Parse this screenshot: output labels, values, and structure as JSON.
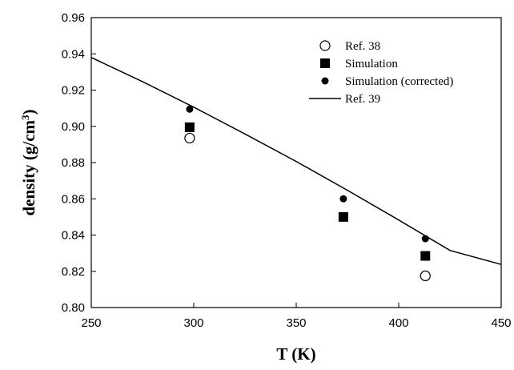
{
  "chart_data": {
    "type": "scatter",
    "xlabel": "T (K)",
    "ylabel_main": "density (g/cm",
    "ylabel_sup": "3",
    "ylabel_close": ")",
    "xlim": [
      250,
      450
    ],
    "ylim": [
      0.8,
      0.96
    ],
    "xticks": [
      "250",
      "300",
      "350",
      "400",
      "450"
    ],
    "yticks": [
      "0.80",
      "0.82",
      "0.84",
      "0.86",
      "0.88",
      "0.90",
      "0.92",
      "0.94",
      "0.96"
    ],
    "grid": false,
    "legend_position": "top-right",
    "series": [
      {
        "name": "Ref. 38",
        "marker": "open-circle",
        "points": [
          {
            "x": 298,
            "y": 0.8935
          },
          {
            "x": 413,
            "y": 0.8175
          }
        ]
      },
      {
        "name": "Simulation",
        "marker": "filled-square",
        "points": [
          {
            "x": 298,
            "y": 0.8995
          },
          {
            "x": 373,
            "y": 0.85
          },
          {
            "x": 413,
            "y": 0.8285
          }
        ]
      },
      {
        "name": "Simulation (corrected)",
        "marker": "filled-circle",
        "points": [
          {
            "x": 298,
            "y": 0.9095
          },
          {
            "x": 373,
            "y": 0.86
          },
          {
            "x": 413,
            "y": 0.838
          }
        ]
      },
      {
        "name": "Ref. 39",
        "marker": "line",
        "points": [
          {
            "x": 250,
            "y": 0.938
          },
          {
            "x": 275,
            "y": 0.9247
          },
          {
            "x": 300,
            "y": 0.9106
          },
          {
            "x": 325,
            "y": 0.8958
          },
          {
            "x": 350,
            "y": 0.8806
          },
          {
            "x": 375,
            "y": 0.8647
          },
          {
            "x": 400,
            "y": 0.8483
          },
          {
            "x": 425,
            "y": 0.8315
          },
          {
            "x": 450,
            "y": 0.8238
          }
        ]
      }
    ]
  }
}
